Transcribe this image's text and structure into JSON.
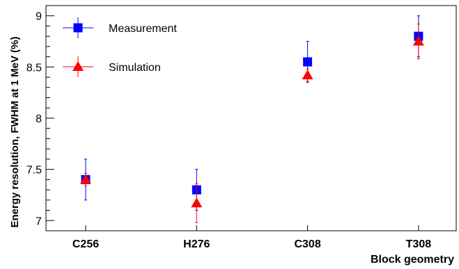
{
  "chart_data": {
    "type": "scatter",
    "categories": [
      "C256",
      "H276",
      "C308",
      "T308"
    ],
    "xlabel": "Block geometry",
    "ylabel": "Energy resolution, FWHM at 1 MeV (%)",
    "ylim": [
      6.9,
      9.1
    ],
    "yticks": [
      7,
      7.5,
      8,
      8.5,
      9
    ],
    "legend_position": "top-left",
    "grid": false,
    "series": [
      {
        "name": "Measurement",
        "marker": "square",
        "color": "#0000ff",
        "values": [
          7.4,
          7.3,
          8.55,
          8.8
        ],
        "errors": [
          0.2,
          0.2,
          0.2,
          0.2
        ]
      },
      {
        "name": "Simulation",
        "marker": "triangle",
        "color": "#ff0000",
        "values": [
          7.4,
          7.17,
          8.42,
          8.75
        ],
        "errors": [
          0.06,
          0.19,
          0.06,
          0.17
        ]
      }
    ]
  }
}
